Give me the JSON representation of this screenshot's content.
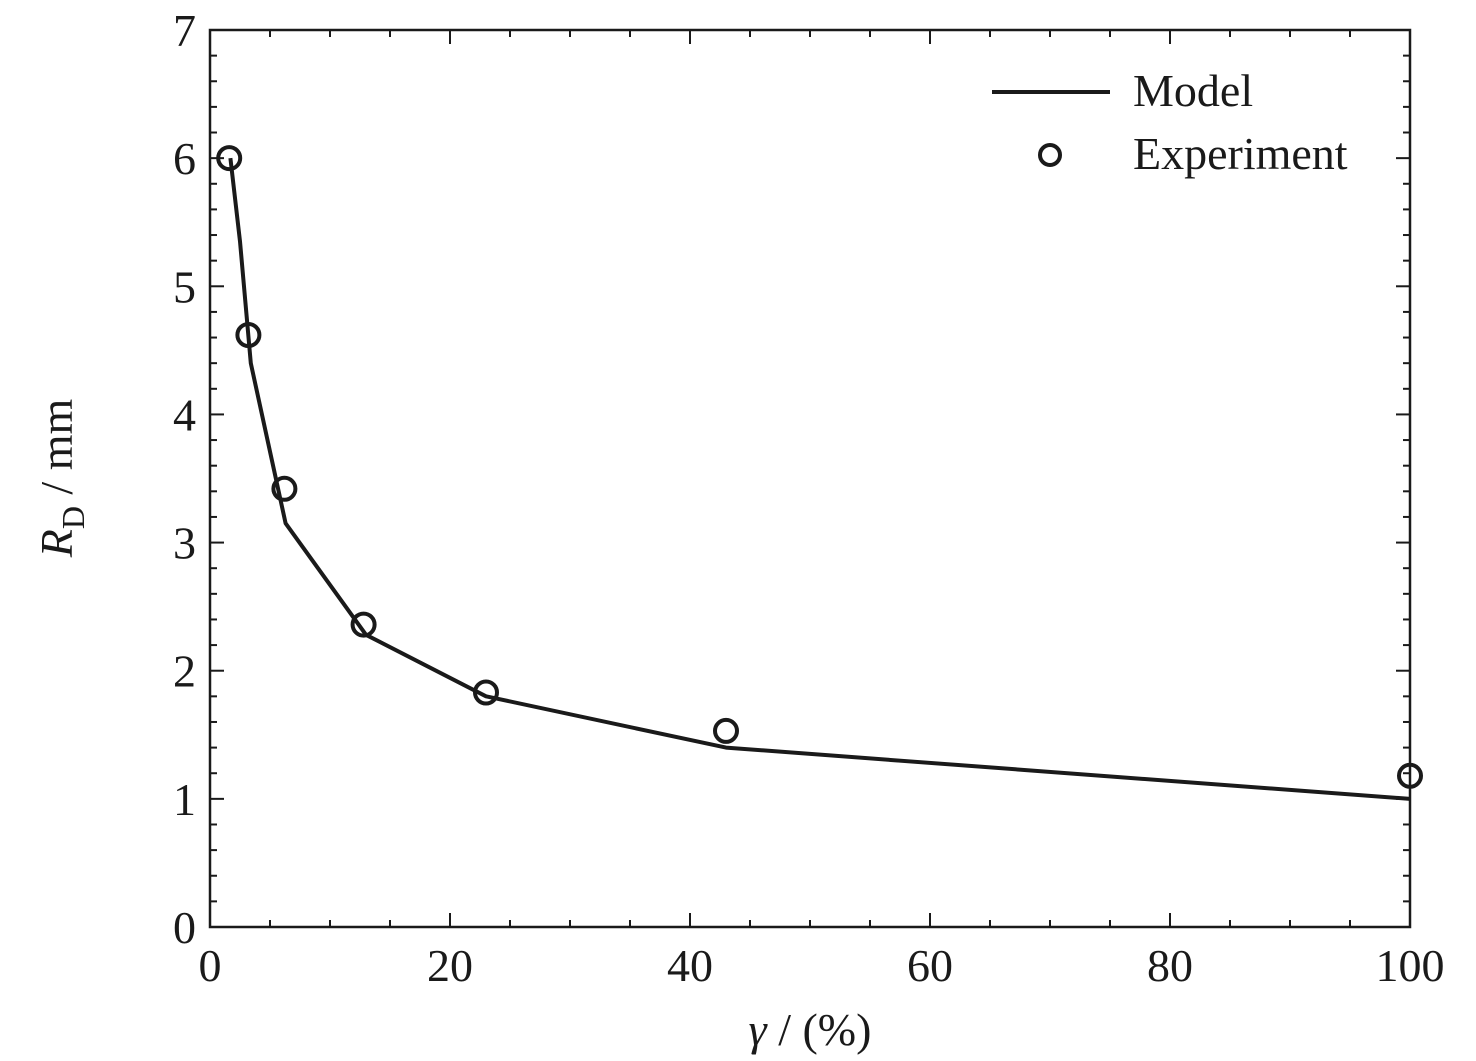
{
  "chart_data": {
    "type": "line",
    "xlabel": {
      "symbol": "γ",
      "unit": " / (%)"
    },
    "ylabel": {
      "symbol": "R",
      "subscript": "D",
      "unit": " / mm"
    },
    "xlim": [
      0,
      100
    ],
    "ylim": [
      0,
      7
    ],
    "x_ticks": [
      0,
      20,
      40,
      60,
      80,
      100
    ],
    "y_ticks": [
      0,
      1,
      2,
      3,
      4,
      5,
      6,
      7
    ],
    "x_tick_labels": [
      "0",
      "20",
      "40",
      "60",
      "80",
      "100"
    ],
    "y_tick_labels": [
      "0",
      "1",
      "2",
      "3",
      "4",
      "5",
      "6",
      "7"
    ],
    "grid": false,
    "legend_position": "top-right",
    "series": [
      {
        "name": "Model",
        "style": "line",
        "color": "#1a1a1a",
        "points": [
          {
            "x": 1.7,
            "y": 6.0
          },
          {
            "x": 2.5,
            "y": 5.35
          },
          {
            "x": 3.4,
            "y": 4.4
          },
          {
            "x": 6.3,
            "y": 3.15
          },
          {
            "x": 13.0,
            "y": 2.28
          },
          {
            "x": 23.0,
            "y": 1.8
          },
          {
            "x": 43.0,
            "y": 1.4
          },
          {
            "x": 100.0,
            "y": 1.0
          }
        ]
      },
      {
        "name": "Experiment",
        "style": "marker",
        "marker": "open-circle",
        "color": "#1a1a1a",
        "points": [
          {
            "x": 1.6,
            "y": 6.0
          },
          {
            "x": 3.2,
            "y": 4.62
          },
          {
            "x": 6.2,
            "y": 3.42
          },
          {
            "x": 12.8,
            "y": 2.36
          },
          {
            "x": 23.0,
            "y": 1.83
          },
          {
            "x": 43.0,
            "y": 1.53
          },
          {
            "x": 100.0,
            "y": 1.18
          }
        ]
      }
    ]
  }
}
